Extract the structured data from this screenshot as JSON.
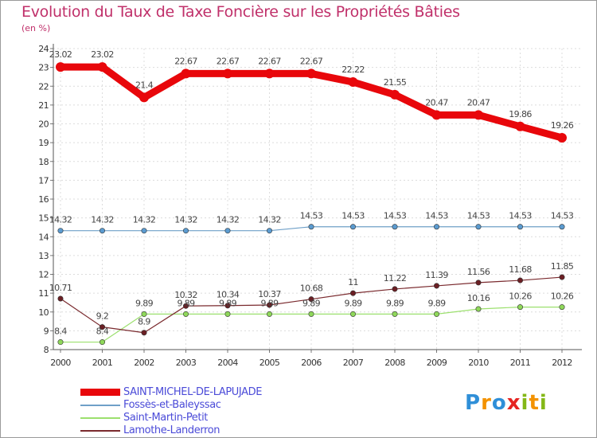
{
  "title": "Evolution du Taux de Taxe Foncière sur les Propriétés Bâties",
  "subtitle": "(en %)",
  "logo": {
    "text": "Proxiti",
    "letters": [
      "P",
      "r",
      "o",
      "x",
      "i",
      "t",
      "i"
    ],
    "colors": [
      "#2f8fd8",
      "#f39200",
      "#2f8fd8",
      "#e52421",
      "#84b817",
      "#f39200",
      "#84b817"
    ]
  },
  "chart_data": {
    "type": "line",
    "title": "Evolution du Taux de Taxe Foncière sur les Propriétés Bâties",
    "ylabel": "(en %)",
    "xlabel": "",
    "ylim": [
      8,
      24
    ],
    "yticks": [
      "8",
      "9",
      "10",
      "11",
      "12",
      "13",
      "14",
      "15",
      "16",
      "17",
      "18",
      "19",
      "20",
      "21",
      "22",
      "23",
      "24"
    ],
    "grid": true,
    "legend_position": "bottom-left",
    "categories": [
      "2000",
      "2001",
      "2002",
      "2003",
      "2004",
      "2005",
      "2006",
      "2007",
      "2008",
      "2009",
      "2010",
      "2011",
      "2012"
    ],
    "series": [
      {
        "name": "SAINT-MICHEL-DE-LAPUJADE",
        "color": "#e8070b",
        "values": [
          23.02,
          23.02,
          21.4,
          22.67,
          22.67,
          22.67,
          22.67,
          22.22,
          21.55,
          20.47,
          20.47,
          19.86,
          19.26
        ],
        "labels": [
          "23.02",
          "23.02",
          "21.4",
          "22.67",
          "22.67",
          "22.67",
          "22.67",
          "22.22",
          "21.55",
          "20.47",
          "20.47",
          "19.86",
          "19.26"
        ]
      },
      {
        "name": "Fossès-et-Baleyssac",
        "color": "#6fa0c8",
        "values": [
          14.32,
          14.32,
          14.32,
          14.32,
          14.32,
          14.32,
          14.53,
          14.53,
          14.53,
          14.53,
          14.53,
          14.53,
          14.53
        ],
        "labels": [
          "14.32",
          "14.32",
          "14.32",
          "14.32",
          "14.32",
          "14.32",
          "14.53",
          "14.53",
          "14.53",
          "14.53",
          "14.53",
          "14.53",
          "14.53"
        ]
      },
      {
        "name": "Saint-Martin-Petit",
        "color": "#9ce06e",
        "values": [
          8.4,
          8.4,
          9.89,
          9.89,
          9.89,
          9.89,
          9.89,
          9.89,
          9.89,
          9.89,
          10.16,
          10.26,
          10.26
        ],
        "labels": [
          "8.4",
          "8.4",
          "9.89",
          "9.89",
          "9.89",
          "9.89",
          "9.89",
          "9.89",
          "9.89",
          "9.89",
          "10.16",
          "10.26",
          "10.26"
        ]
      },
      {
        "name": "Lamothe-Landerron",
        "color": "#7a2a2e",
        "values": [
          10.71,
          9.2,
          8.9,
          10.32,
          10.34,
          10.37,
          10.68,
          11,
          11.22,
          11.39,
          11.56,
          11.68,
          11.85
        ],
        "labels": [
          "10.71",
          "9.2",
          "8.9",
          "10.32",
          "10.34",
          "10.37",
          "10.68",
          "11",
          "11.22",
          "11.39",
          "11.56",
          "11.68",
          "11.85"
        ]
      }
    ]
  }
}
